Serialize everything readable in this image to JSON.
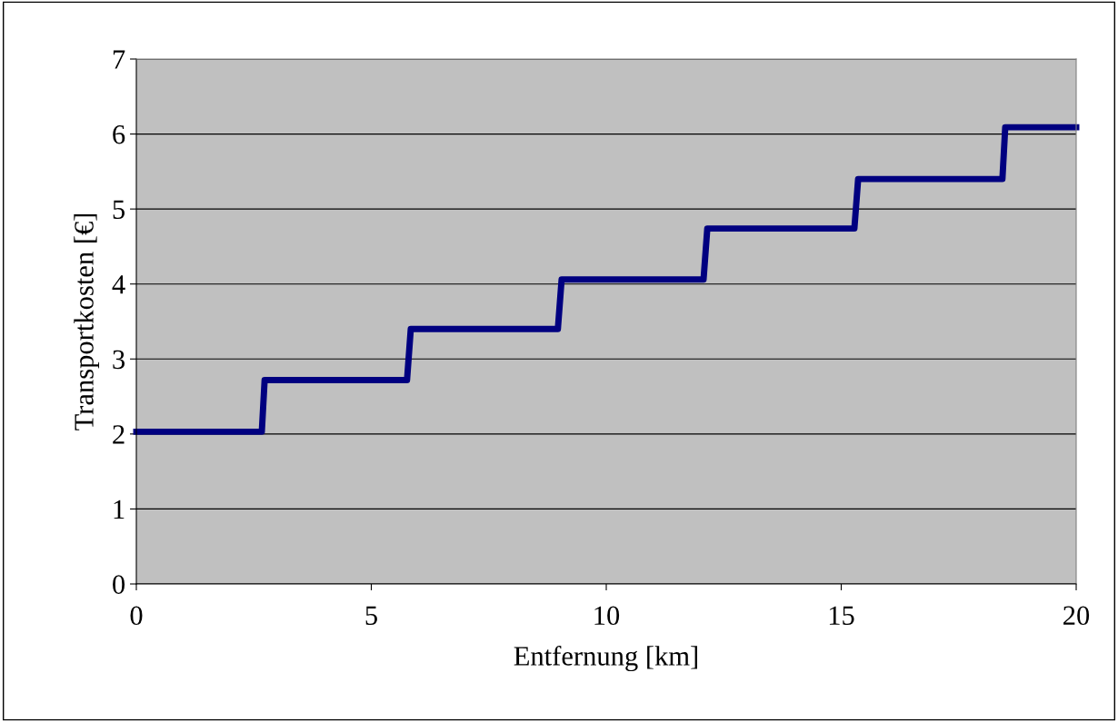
{
  "chart_data": {
    "type": "line",
    "xlabel": "Entfernung [km]",
    "ylabel": "Transportkosten [€]",
    "x": [
      0,
      2.67,
      2.73,
      5.76,
      5.84,
      8.97,
      9.05,
      12.07,
      12.15,
      15.28,
      15.36,
      18.43,
      18.49,
      20
    ],
    "series": [
      {
        "color": "#000080",
        "values": [
          2.03,
          2.03,
          2.72,
          2.72,
          3.4,
          3.4,
          4.06,
          4.06,
          4.74,
          4.74,
          5.4,
          5.4,
          6.09,
          6.09
        ]
      }
    ],
    "xlim": [
      0,
      20
    ],
    "xticks": [
      0,
      5,
      10,
      15,
      20
    ],
    "ylim": [
      0,
      7
    ],
    "yticks": [
      0,
      1,
      2,
      3,
      4,
      5,
      6,
      7
    ],
    "grid": "y",
    "marker": "none",
    "line_style": "solid"
  }
}
